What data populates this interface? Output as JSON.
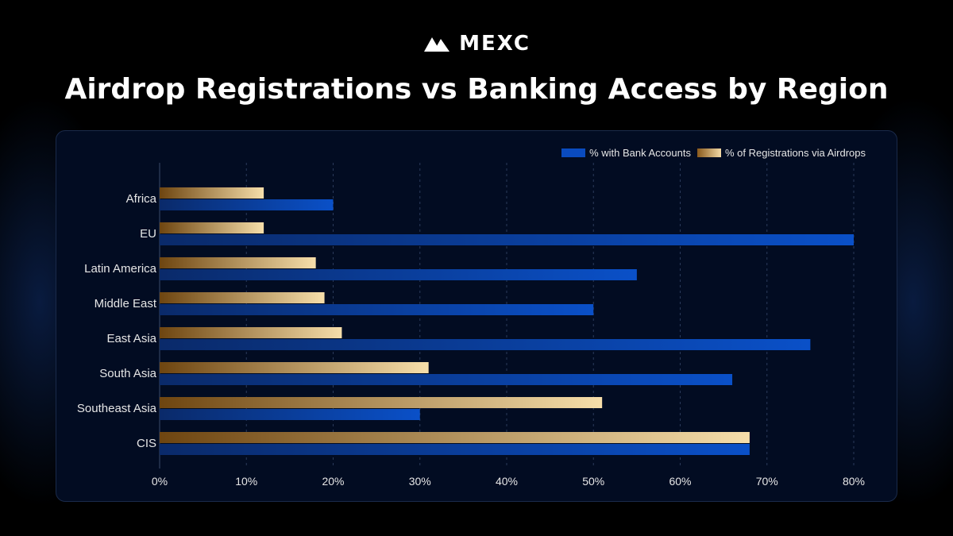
{
  "brand": {
    "name": "MEXC"
  },
  "colors": {
    "bank": "#0a4bbf",
    "airdrop_dark": "#6e4510",
    "airdrop_light": "#f6deaa",
    "grid": "#2a3a5a"
  },
  "chart_data": {
    "type": "bar",
    "orientation": "horizontal",
    "title": "Airdrop Registrations vs Banking Access by Region",
    "categories": [
      "Africa",
      "EU",
      "Latin America",
      "Middle East",
      "East Asia",
      "South Asia",
      "Southeast Asia",
      "CIS"
    ],
    "series": [
      {
        "name": "% with Bank Accounts",
        "values": [
          20,
          80,
          55,
          50,
          75,
          66,
          30,
          68
        ]
      },
      {
        "name": "% of Registrations via Airdrops",
        "values": [
          12,
          12,
          18,
          19,
          21,
          31,
          51,
          68
        ]
      }
    ],
    "xlim": [
      0,
      80
    ],
    "xticks": [
      "0%",
      "10%",
      "20%",
      "30%",
      "40%",
      "50%",
      "60%",
      "70%",
      "80%"
    ],
    "grid": true,
    "legend_position": "top-right"
  }
}
